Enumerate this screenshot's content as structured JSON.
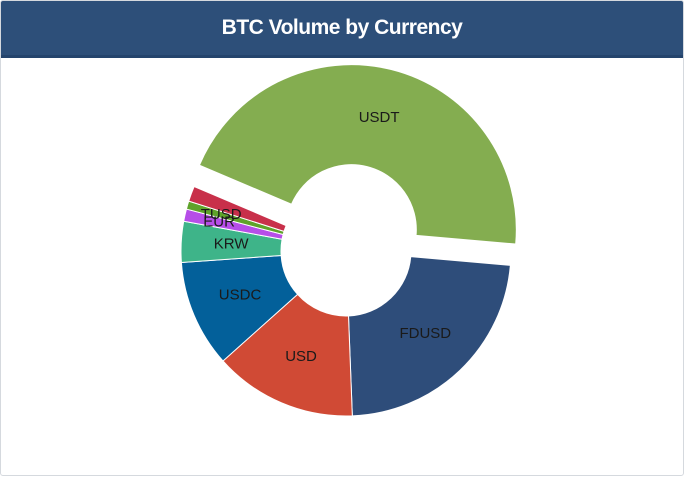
{
  "chart_data": {
    "type": "donut",
    "title": "BTC Volume by Currency",
    "categories": [
      "USDT",
      "FDUSD",
      "USD",
      "USDC",
      "KRW",
      "EUR",
      "TUSD",
      null
    ],
    "values": [
      45,
      23,
      14,
      10.5,
      4,
      1.2,
      0.8,
      1.5
    ],
    "colors": [
      "#84ad50",
      "#2e4d7a",
      "#d04a35",
      "#03609a",
      "#3eb489",
      "#b64ee8",
      "#5fa32a",
      "#c8304a"
    ],
    "exploded": [
      0
    ]
  }
}
